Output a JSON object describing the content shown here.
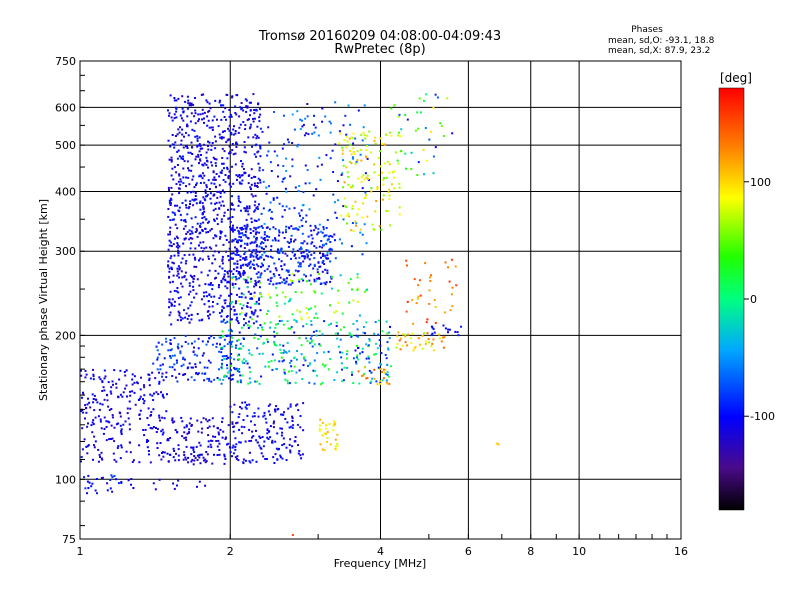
{
  "chart_data": {
    "type": "scatter",
    "title": "Tromsø 20160209 04:08:00-04:09:43",
    "subtitle": "RwPretec (8p)",
    "xlabel": "Frequency [MHz]",
    "ylabel": "Stationary phase Virtual Height [km]",
    "x_scale": "log",
    "y_scale": "log",
    "xlim": [
      1,
      16
    ],
    "ylim": [
      75,
      750
    ],
    "grid": true,
    "x_ticks": [
      1,
      2,
      4,
      6,
      8,
      10,
      16
    ],
    "x_tick_labels": [
      "1",
      "2",
      "4",
      "6",
      "8",
      "10",
      "16"
    ],
    "x_grid_lines": [
      2,
      4,
      6,
      8,
      10
    ],
    "y_ticks": [
      75,
      100,
      200,
      300,
      400,
      500,
      600,
      750
    ],
    "y_tick_labels": [
      "75",
      "100",
      "200",
      "300",
      "400",
      "500",
      "600",
      "750"
    ],
    "y_grid_lines": [
      100,
      200,
      300,
      400,
      500,
      600
    ],
    "stats": {
      "heading": "Phases",
      "line_o": "mean, sd,O: -93.1, 18.8",
      "line_x": "mean, sd,X:  87.9, 23.2"
    },
    "colorbar": {
      "label": "[deg]",
      "range": [
        -180,
        180
      ],
      "ticks": [
        100,
        0,
        -100
      ],
      "tick_labels": [
        "100",
        "0",
        "-100"
      ]
    },
    "clusters": [
      {
        "f": [
          1.0,
          1.5
        ],
        "h": [
          108,
          170
        ],
        "phase": [
          -125,
          -95
        ],
        "count": 260
      },
      {
        "f": [
          1.5,
          2.0
        ],
        "h": [
          107,
          135
        ],
        "phase": [
          -125,
          -100
        ],
        "count": 130
      },
      {
        "f": [
          2.0,
          2.8
        ],
        "h": [
          108,
          145
        ],
        "phase": [
          -125,
          -90
        ],
        "count": 170
      },
      {
        "f": [
          1.0,
          1.3
        ],
        "h": [
          93,
          102
        ],
        "phase": [
          -120,
          -80
        ],
        "count": 30
      },
      {
        "f": [
          1.4,
          1.8
        ],
        "h": [
          95,
          100
        ],
        "phase": [
          -120,
          -100
        ],
        "count": 10
      },
      {
        "f": [
          1.5,
          2.3
        ],
        "h": [
          210,
          640
        ],
        "phase": [
          -125,
          -90
        ],
        "count": 1000
      },
      {
        "f": [
          2.0,
          3.2
        ],
        "h": [
          255,
          340
        ],
        "phase": [
          -125,
          -70
        ],
        "count": 330
      },
      {
        "f": [
          2.3,
          3.8
        ],
        "h": [
          290,
          620
        ],
        "phase": [
          -120,
          -40
        ],
        "count": 200
      },
      {
        "f": [
          3.3,
          4.4
        ],
        "h": [
          330,
          540
        ],
        "phase": [
          45,
          120
        ],
        "count": 140
      },
      {
        "f": [
          4.2,
          5.6
        ],
        "h": [
          430,
          640
        ],
        "phase": [
          -120,
          100
        ],
        "count": 40
      },
      {
        "f": [
          1.4,
          2.1
        ],
        "h": [
          160,
          200
        ],
        "phase": [
          -120,
          -60
        ],
        "count": 150
      },
      {
        "f": [
          1.9,
          4.2
        ],
        "h": [
          158,
          215
        ],
        "phase": [
          -110,
          40
        ],
        "count": 320
      },
      {
        "f": [
          4.3,
          5.4
        ],
        "h": [
          185,
          205
        ],
        "phase": [
          60,
          145
        ],
        "count": 40
      },
      {
        "f": [
          3.6,
          4.2
        ],
        "h": [
          158,
          172
        ],
        "phase": [
          95,
          150
        ],
        "count": 20
      },
      {
        "f": [
          2.0,
          3.8
        ],
        "h": [
          215,
          270
        ],
        "phase": [
          -40,
          90
        ],
        "count": 90
      },
      {
        "f": [
          4.5,
          5.7
        ],
        "h": [
          210,
          290
        ],
        "phase": [
          100,
          165
        ],
        "count": 35
      },
      {
        "f": [
          5.0,
          5.8
        ],
        "h": [
          200,
          210
        ],
        "phase": [
          -110,
          -85
        ],
        "count": 15
      },
      {
        "f": [
          3.0,
          3.3
        ],
        "h": [
          115,
          135
        ],
        "phase": [
          75,
          120
        ],
        "count": 30
      },
      {
        "f": [
          6.8,
          7.0
        ],
        "h": [
          117,
          121
        ],
        "phase": [
          100,
          120
        ],
        "count": 2
      },
      {
        "f": [
          2.6,
          2.7
        ],
        "h": [
          75,
          78
        ],
        "phase": [
          140,
          160
        ],
        "count": 1
      }
    ]
  }
}
